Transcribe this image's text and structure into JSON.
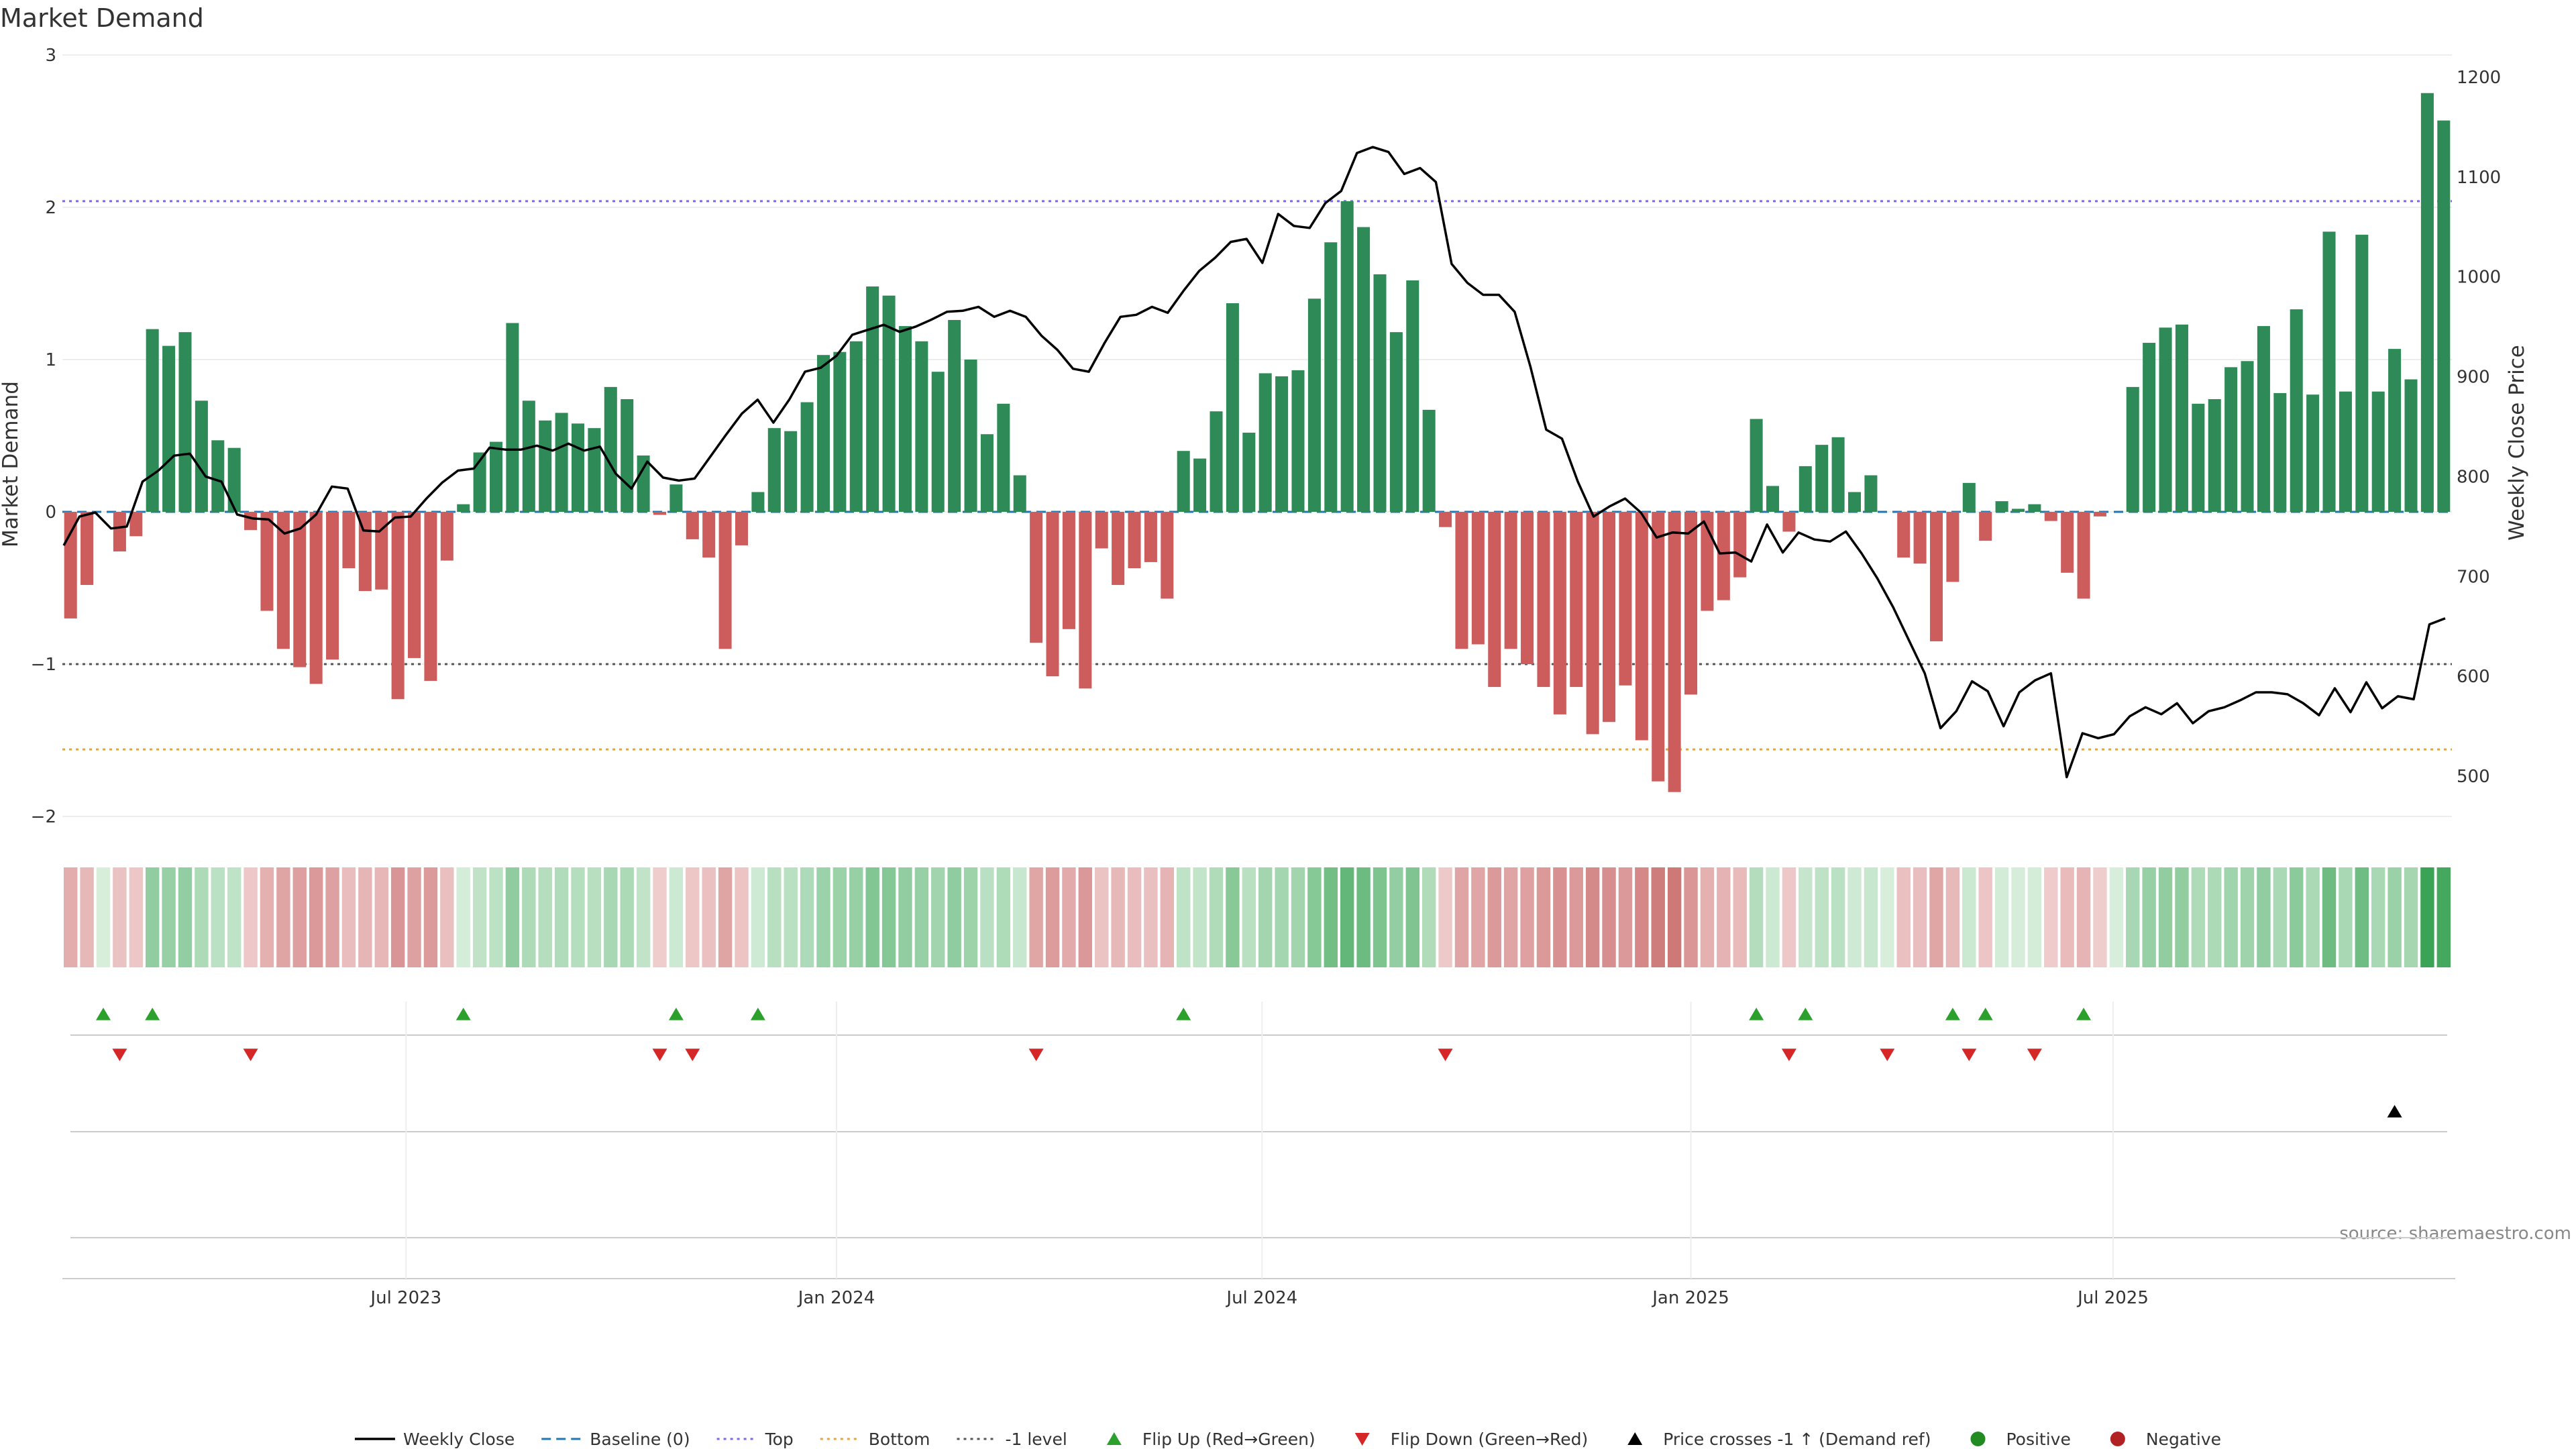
{
  "chart_data": {
    "type": "bar",
    "title": "Market Demand",
    "ylabel": "Market Demand",
    "y2label": "Weekly Close Price",
    "ylim": [
      -2.2,
      3
    ],
    "y2lim": [
      450,
      1220
    ],
    "yticks": [
      3,
      2,
      1,
      0,
      -1,
      -2
    ],
    "yticklabels": [
      "3",
      "2",
      "1",
      "0",
      "−1",
      "−2"
    ],
    "y2ticks": [
      1200,
      1100,
      1000,
      900,
      800,
      700,
      600,
      500
    ],
    "y2ticklabels": [
      "1200",
      "1100",
      "1000",
      "900",
      "800",
      "700",
      "600",
      "500"
    ],
    "xticks": [
      {
        "index": 20.5,
        "label": "Jul 2023"
      },
      {
        "index": 46.8,
        "label": "Jan 2024"
      },
      {
        "index": 72.8,
        "label": "Jul 2024"
      },
      {
        "index": 99,
        "label": "Jan 2025"
      },
      {
        "index": 124.8,
        "label": "Jul 2025"
      }
    ],
    "reference_lines": {
      "baseline": 0,
      "top": 2.04,
      "bottom": -1.56,
      "minus_one": -1
    },
    "demand": [
      -0.7,
      -0.48,
      0,
      -0.26,
      -0.16,
      1.2,
      1.09,
      1.18,
      0.73,
      0.47,
      0.42,
      -0.12,
      -0.65,
      -0.9,
      -1.02,
      -1.13,
      -0.97,
      -0.37,
      -0.52,
      -0.51,
      -1.23,
      -0.96,
      -1.11,
      -0.32,
      0.05,
      0.39,
      0.46,
      1.24,
      0.73,
      0.6,
      0.65,
      0.58,
      0.55,
      0.82,
      0.74,
      0.37,
      -0.02,
      0.18,
      -0.18,
      -0.3,
      -0.9,
      -0.22,
      0.13,
      0.55,
      0.53,
      0.72,
      1.03,
      1.05,
      1.12,
      1.48,
      1.42,
      1.22,
      1.12,
      0.92,
      1.26,
      1.0,
      0.51,
      0.71,
      0.24,
      -0.86,
      -1.08,
      -0.77,
      -1.16,
      -0.24,
      -0.48,
      -0.37,
      -0.33,
      -0.57,
      0.4,
      0.35,
      0.66,
      1.37,
      0.52,
      0.91,
      0.89,
      0.93,
      1.4,
      1.77,
      2.04,
      1.87,
      1.56,
      1.18,
      1.52,
      0.67,
      -0.1,
      -0.9,
      -0.87,
      -1.15,
      -0.9,
      -1.0,
      -1.15,
      -1.33,
      -1.15,
      -1.46,
      -1.38,
      -1.14,
      -1.5,
      -1.77,
      -1.84,
      -1.2,
      -0.65,
      -0.58,
      -0.43,
      0.61,
      0.17,
      -0.13,
      0.3,
      0.44,
      0.49,
      0.13,
      0.24,
      0,
      -0.3,
      -0.34,
      -0.85,
      -0.46,
      0.19,
      -0.19,
      0.07,
      0.02,
      0.05,
      -0.06,
      -0.4,
      -0.57,
      -0.03,
      0,
      0.82,
      1.11,
      1.21,
      1.23,
      0.71,
      0.74,
      0.95,
      0.99,
      1.22,
      0.78,
      1.33,
      0.77,
      1.84,
      0.79,
      1.82,
      0.79,
      1.07,
      0.87,
      2.75,
      2.57
    ],
    "price": [
      731,
      760,
      764,
      748,
      750,
      795,
      806,
      821,
      823,
      800,
      795,
      762,
      758,
      757,
      743,
      748,
      762,
      790,
      788,
      746,
      745,
      759,
      760,
      778,
      794,
      806,
      808,
      829,
      827,
      827,
      831,
      826,
      833,
      826,
      830,
      803,
      788,
      815,
      799,
      796,
      798,
      820,
      842,
      863,
      877,
      854,
      877,
      905,
      909,
      921,
      942,
      947,
      952,
      945,
      950,
      957,
      965,
      966,
      970,
      960,
      966,
      960,
      941,
      927,
      908,
      905,
      934,
      960,
      962,
      970,
      964,
      986,
      1006,
      1019,
      1035,
      1038,
      1014,
      1063,
      1051,
      1049,
      1074,
      1086,
      1124,
      1130,
      1125,
      1103,
      1109,
      1095,
      1013,
      994,
      982,
      982,
      965,
      910,
      847,
      838,
      795,
      760,
      770,
      778,
      764,
      739,
      744,
      743,
      755,
      723,
      724,
      715,
      752,
      724,
      744,
      737,
      735,
      745,
      723,
      698,
      669,
      636,
      603,
      548,
      565,
      595,
      585,
      550,
      584,
      596,
      603,
      499,
      543,
      538,
      542,
      560,
      569,
      562,
      573,
      553,
      565,
      569,
      576,
      584,
      584,
      582,
      573,
      561,
      588,
      564,
      594,
      568,
      580,
      577,
      652,
      658
    ],
    "flip_up_indices": [
      2,
      5,
      24,
      37,
      42,
      68,
      103,
      106,
      115,
      117,
      123
    ],
    "flip_down_indices": [
      3,
      11,
      36,
      38,
      59,
      84,
      105,
      111,
      116,
      120
    ],
    "demand_ref_cross_indices": [
      142
    ],
    "annotation": "source: sharemaestro.com",
    "legend": [
      {
        "key": "weekly_close",
        "label": "Weekly Close"
      },
      {
        "key": "baseline",
        "label": "Baseline (0)"
      },
      {
        "key": "top",
        "label": "Top"
      },
      {
        "key": "bottom",
        "label": "Bottom"
      },
      {
        "key": "minus_one",
        "label": "-1 level"
      },
      {
        "key": "flip_up",
        "label": "Flip Up (Red→Green)"
      },
      {
        "key": "flip_down",
        "label": "Flip Down (Green→Red)"
      },
      {
        "key": "price_cross",
        "label": "Price crosses -1 ↑ (Demand ref)"
      },
      {
        "key": "positive",
        "label": "Positive"
      },
      {
        "key": "negative",
        "label": "Negative"
      }
    ],
    "colors": {
      "positive": "#2e8b57",
      "negative": "#cd5c5c",
      "price": "#000000",
      "baseline": "#1f77b4",
      "top": "#7b68ee",
      "bottom": "#e8a33c",
      "minus_one": "#555555",
      "flip_up": "#2ca02c",
      "flip_down": "#d62728",
      "legend_positive": "#228b22",
      "legend_negative": "#b22222"
    }
  }
}
